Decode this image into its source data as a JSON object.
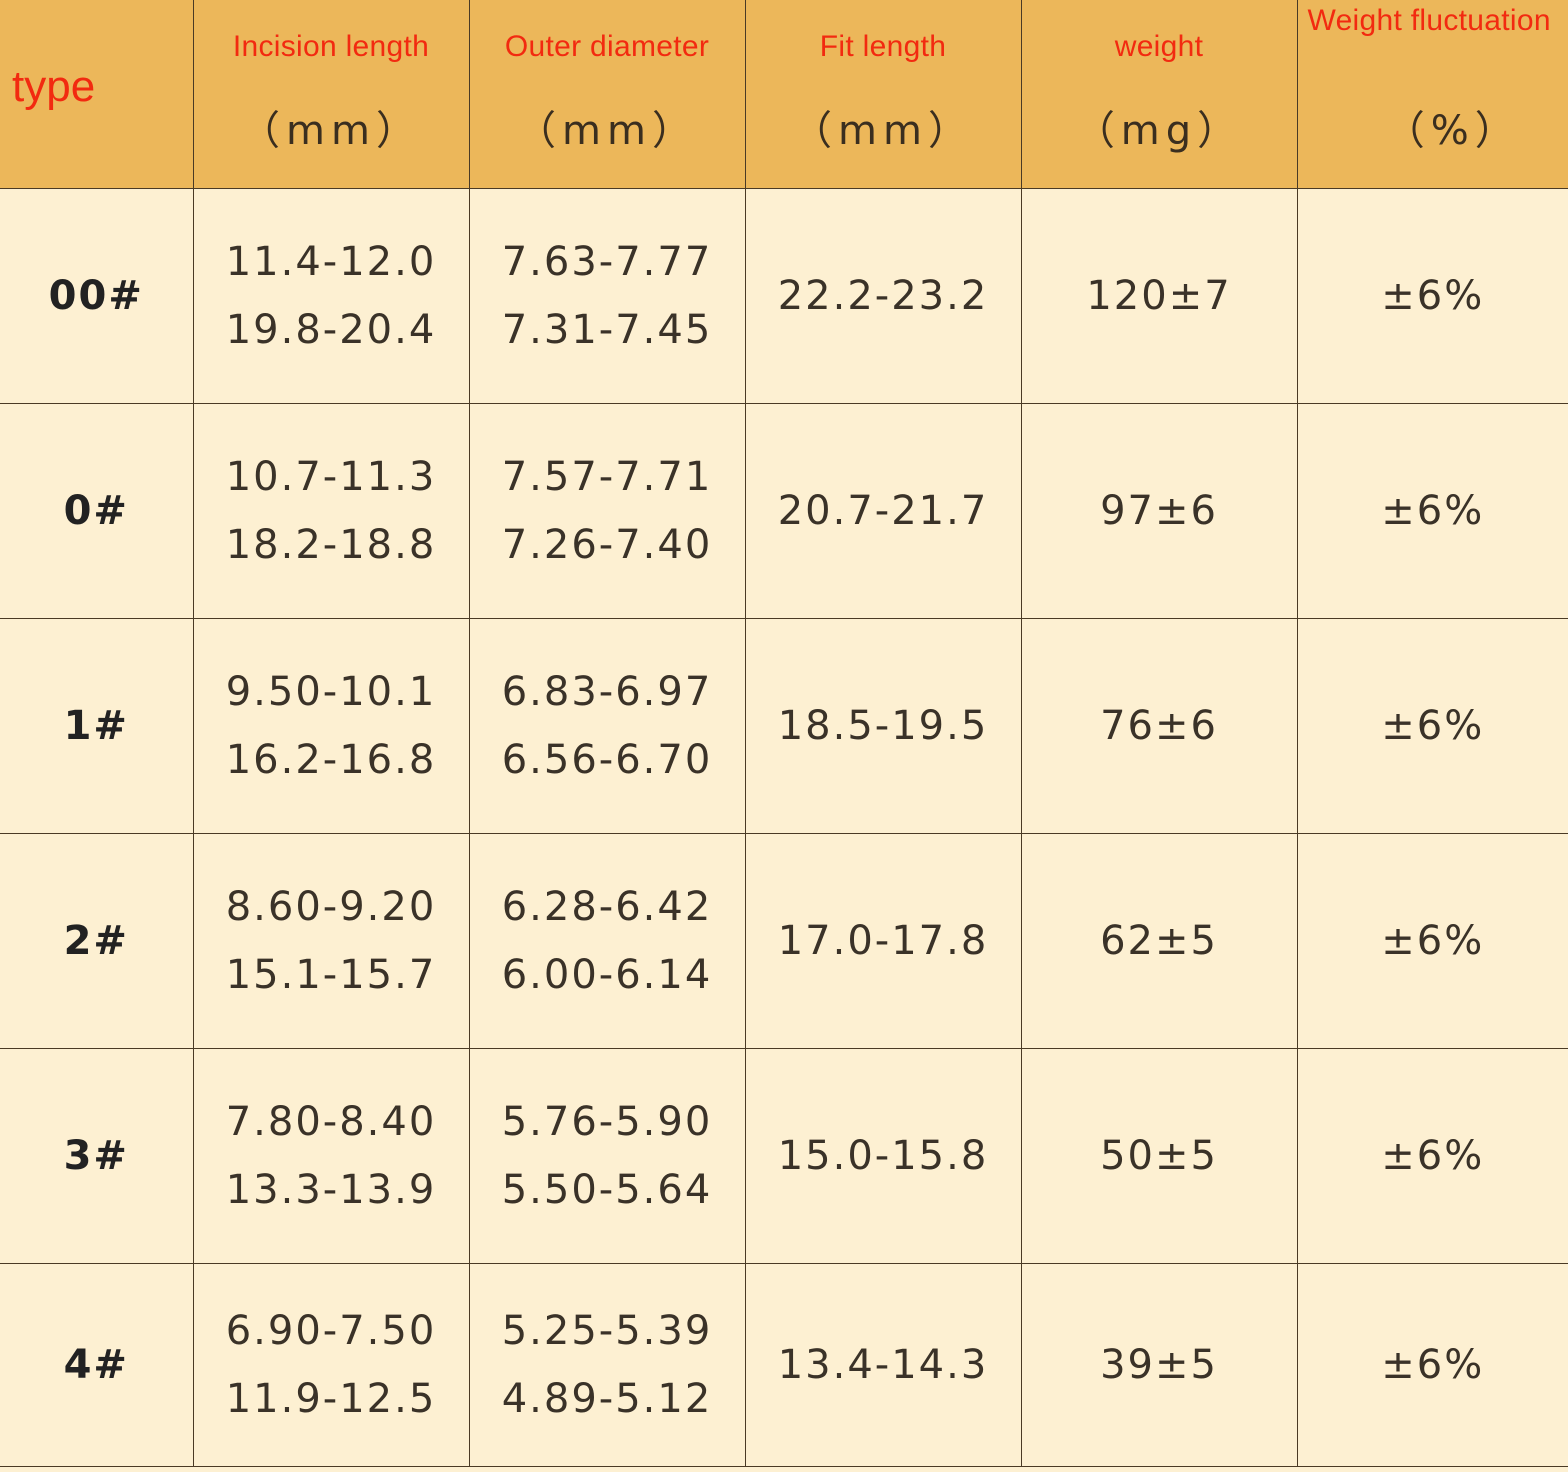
{
  "table": {
    "header": {
      "type": "type",
      "columns": [
        {
          "name": "Incision length",
          "unit": "（mm）"
        },
        {
          "name": "Outer diameter",
          "unit": "（mm）"
        },
        {
          "name": "Fit length",
          "unit": "（mm）"
        },
        {
          "name": "weight",
          "unit": "（mg）"
        },
        {
          "name": "Weight fluctuation",
          "unit": "（%）"
        }
      ]
    },
    "rows": [
      {
        "type": "00#",
        "incision": [
          "11.4-12.0",
          "19.8-20.4"
        ],
        "diameter": [
          "7.63-7.77",
          "7.31-7.45"
        ],
        "fit": "22.2-23.2",
        "weight": "120±7",
        "fluct": "±6%"
      },
      {
        "type": "0#",
        "incision": [
          "10.7-11.3",
          "18.2-18.8"
        ],
        "diameter": [
          "7.57-7.71",
          "7.26-7.40"
        ],
        "fit": "20.7-21.7",
        "weight": "97±6",
        "fluct": "±6%"
      },
      {
        "type": "1#",
        "incision": [
          "9.50-10.1",
          "16.2-16.8"
        ],
        "diameter": [
          "6.83-6.97",
          "6.56-6.70"
        ],
        "fit": "18.5-19.5",
        "weight": "76±6",
        "fluct": "±6%"
      },
      {
        "type": "2#",
        "incision": [
          "8.60-9.20",
          "15.1-15.7"
        ],
        "diameter": [
          "6.28-6.42",
          "6.00-6.14"
        ],
        "fit": "17.0-17.8",
        "weight": "62±5",
        "fluct": "±6%"
      },
      {
        "type": "3#",
        "incision": [
          "7.80-8.40",
          "13.3-13.9"
        ],
        "diameter": [
          "5.76-5.90",
          "5.50-5.64"
        ],
        "fit": "15.0-15.8",
        "weight": "50±5",
        "fluct": "±6%"
      },
      {
        "type": "4#",
        "incision": [
          "6.90-7.50",
          "11.9-12.5"
        ],
        "diameter": [
          "5.25-5.39",
          "4.89-5.12"
        ],
        "fit": "13.4-14.3",
        "weight": "39±5",
        "fluct": "±6%"
      }
    ]
  },
  "colors": {
    "header_bg": "#ecb75a",
    "body_bg": "#fdf0d2",
    "header_text": "#f22a10"
  }
}
